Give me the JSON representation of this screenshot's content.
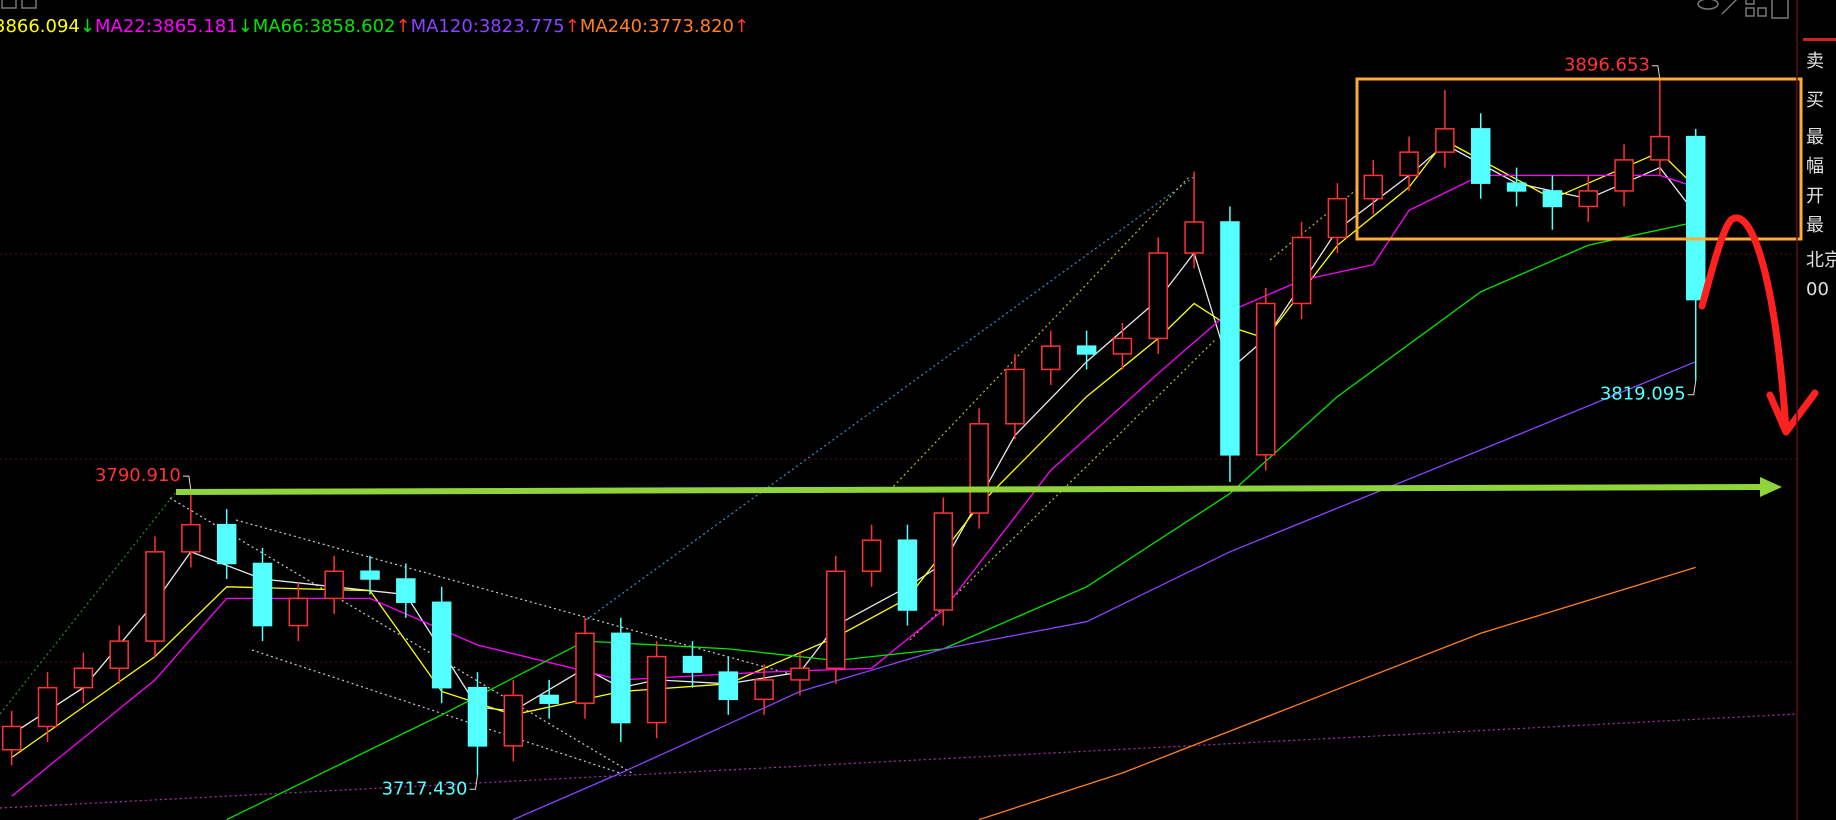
{
  "chart_data": {
    "type": "candlestick",
    "ylim": [
      3705.9,
      3917.2
    ],
    "up_color": "#ff3232",
    "down_color": "#54ffff",
    "open": [
      3724,
      3730,
      3740,
      3745,
      3752,
      3775,
      3782,
      3772,
      3756,
      3763,
      3770,
      3768,
      3762,
      3740,
      3725,
      3738,
      3736,
      3754,
      3731,
      3748,
      3744,
      3737,
      3742,
      3745,
      3770,
      3778,
      3760,
      3785,
      3808,
      3822,
      3828,
      3826,
      3830,
      3852,
      3860,
      3800,
      3839,
      3856,
      3866,
      3872,
      3878,
      3884,
      3870,
      3868,
      3864,
      3868,
      3876,
      3882
    ],
    "high": [
      3734,
      3744,
      3749,
      3756,
      3779,
      3790.91,
      3786,
      3776,
      3767,
      3774,
      3774,
      3772,
      3766,
      3744,
      3742,
      3742,
      3758,
      3758,
      3752,
      3752,
      3748,
      3746,
      3749,
      3774,
      3782,
      3782,
      3789,
      3812,
      3826,
      3832,
      3832,
      3834,
      3856,
      3873,
      3864,
      3843,
      3860,
      3870,
      3876,
      3882,
      3894,
      3888,
      3874,
      3872,
      3872,
      3880,
      3896.653,
      3884
    ],
    "low": [
      3720,
      3726,
      3736,
      3741,
      3748,
      3771,
      3768,
      3752,
      3752,
      3759,
      3764,
      3758,
      3736,
      3717.43,
      3721,
      3732,
      3732,
      3726,
      3727,
      3740,
      3733,
      3733,
      3738,
      3741,
      3766,
      3756,
      3756,
      3781,
      3804,
      3818,
      3822,
      3822,
      3826,
      3848,
      3793,
      3796,
      3835,
      3852,
      3862,
      3868,
      3874,
      3866,
      3864,
      3858,
      3860,
      3864,
      3872,
      3819.095
    ],
    "close": [
      3730,
      3740,
      3745,
      3752,
      3775,
      3782,
      3772,
      3756,
      3763,
      3770,
      3768,
      3762,
      3740,
      3725,
      3738,
      3736,
      3754,
      3731,
      3748,
      3744,
      3737,
      3742,
      3745,
      3770,
      3778,
      3760,
      3785,
      3808,
      3822,
      3828,
      3826,
      3830,
      3852,
      3860,
      3800,
      3839,
      3856,
      3866,
      3872,
      3878,
      3884,
      3870,
      3868,
      3864,
      3868,
      3876,
      3882,
      3840
    ],
    "high_labels": [
      null,
      null,
      null,
      null,
      null,
      "3790.910",
      null,
      null,
      null,
      null,
      null,
      null,
      null,
      null,
      null,
      null,
      null,
      null,
      null,
      null,
      null,
      null,
      null,
      null,
      null,
      null,
      null,
      null,
      null,
      null,
      null,
      null,
      null,
      null,
      null,
      null,
      null,
      null,
      null,
      null,
      null,
      null,
      null,
      null,
      null,
      null,
      "3896.653",
      null
    ],
    "low_labels": [
      null,
      null,
      null,
      null,
      null,
      null,
      null,
      null,
      null,
      null,
      null,
      null,
      null,
      "3717.430",
      null,
      null,
      null,
      null,
      null,
      null,
      null,
      null,
      null,
      null,
      null,
      null,
      null,
      null,
      null,
      null,
      null,
      null,
      null,
      null,
      null,
      null,
      null,
      null,
      null,
      null,
      null,
      null,
      null,
      null,
      null,
      null,
      null,
      "3819.095"
    ],
    "series": [
      {
        "color": "#e8e8e8",
        "x": [
          0,
          2,
          4,
          5,
          7,
          9,
          11,
          13,
          14,
          16,
          17,
          18,
          20,
          22,
          23,
          25,
          26,
          28,
          30,
          32,
          33,
          34,
          35,
          37,
          39,
          40,
          42,
          44,
          46,
          47
        ],
        "values": [
          3728,
          3740,
          3762,
          3775,
          3768,
          3766,
          3764,
          3735,
          3734,
          3745,
          3740,
          3742,
          3741,
          3744,
          3756,
          3766,
          3772,
          3805,
          3824,
          3840,
          3852,
          3822,
          3830,
          3858,
          3872,
          3880,
          3870,
          3866,
          3874,
          3862
        ]
      },
      {
        "color": "#ffff00",
        "legend": "3866.094",
        "trend": "↓",
        "trend_color": "#00e600",
        "x": [
          0,
          4,
          6,
          10,
          12,
          14,
          17,
          20,
          23,
          25,
          27,
          30,
          32,
          33,
          34,
          35,
          37,
          39,
          40,
          43,
          46,
          47
        ],
        "values": [
          3722,
          3748,
          3766,
          3765,
          3739,
          3733,
          3739,
          3741,
          3753,
          3763,
          3787,
          3815,
          3830,
          3839,
          3833,
          3830,
          3854,
          3869,
          3881,
          3866,
          3878,
          3869
        ]
      },
      {
        "color": "#ff00ff",
        "legend": "MA22:3865.181",
        "trend": "↓",
        "trend_color": "#00e600",
        "x": [
          0,
          4,
          6,
          10,
          13,
          17,
          21,
          24,
          26,
          29,
          32,
          34,
          36,
          38,
          39,
          41,
          44,
          46,
          47
        ],
        "values": [
          3712,
          3742,
          3763,
          3763,
          3751,
          3742,
          3744,
          3745,
          3760,
          3796,
          3821,
          3837,
          3845,
          3849,
          3863,
          3872,
          3872,
          3872,
          3869
        ]
      },
      {
        "color": "#00e600",
        "legend": "MA66:3858.602",
        "trend": "↑",
        "trend_color": "#ff3232",
        "x": [
          6,
          12,
          16,
          20,
          23,
          26,
          30,
          34,
          37,
          41,
          44,
          47
        ],
        "values": [
          3706,
          3733,
          3752,
          3750,
          3747,
          3750,
          3766,
          3790,
          3815,
          3842,
          3854,
          3860
        ]
      },
      {
        "color": "#8844ff",
        "legend": "MA120:3823.775",
        "trend": "↑",
        "trend_color": "#ff3232",
        "x": [
          14,
          17,
          22,
          26,
          30,
          34,
          38,
          42,
          47
        ],
        "values": [
          3706,
          3718,
          3739,
          3750,
          3757,
          3775,
          3790,
          3805,
          3824
        ]
      },
      {
        "color": "#ff7f1e",
        "legend": "MA240:3773.820",
        "trend": "↑",
        "trend_color": "#ff3232",
        "x": [
          27,
          31,
          36,
          41,
          47
        ],
        "values": [
          3706,
          3718,
          3736,
          3754,
          3771
        ]
      }
    ]
  },
  "side_panel": [
    "卖",
    "买",
    "最",
    "幅",
    "开",
    "最",
    "北京",
    "00"
  ]
}
